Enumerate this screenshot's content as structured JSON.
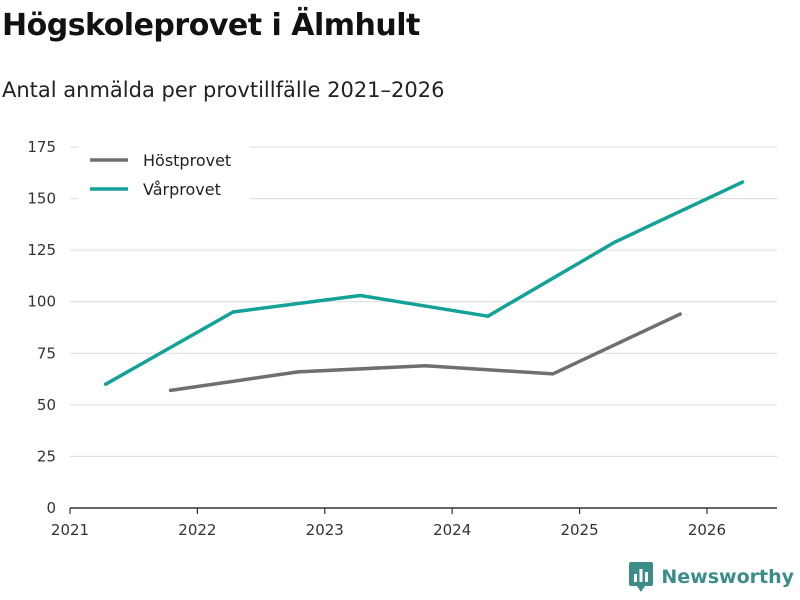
{
  "title": "Högskoleprovet i Älmhult",
  "subtitle": "Antal anmälda per provtillfälle 2021–2026",
  "brand": {
    "name": "Newsworthy",
    "color": "#3c8d8a"
  },
  "colors": {
    "host": "#6e6e73",
    "var": "#13a198",
    "grid": "#dcdcdc",
    "axis": "#333333"
  },
  "chart_data": {
    "type": "line",
    "title": "Högskoleprovet i Älmhult",
    "subtitle": "Antal anmälda per provtillfälle 2021–2026",
    "xlabel": "",
    "ylabel": "",
    "xlim": [
      2021,
      2026.55
    ],
    "ylim": [
      0,
      175
    ],
    "x_ticks": [
      "2021",
      "2022",
      "2023",
      "2024",
      "2025",
      "2026"
    ],
    "y_ticks": [
      "0",
      "25",
      "50",
      "75",
      "100",
      "125",
      "150",
      "175"
    ],
    "grid": true,
    "legend_position": "top-left",
    "series": [
      {
        "name": "Höstprovet",
        "color": "#6e6e73",
        "x": [
          2021.79,
          2022.79,
          2023.79,
          2024.79,
          2025.79
        ],
        "y": [
          57,
          66,
          69,
          65,
          94
        ]
      },
      {
        "name": "Vårprovet",
        "color": "#13a198",
        "x": [
          2021.28,
          2022.28,
          2023.28,
          2024.28,
          2025.28,
          2026.28
        ],
        "y": [
          60,
          95,
          103,
          93,
          129,
          158
        ]
      }
    ]
  }
}
